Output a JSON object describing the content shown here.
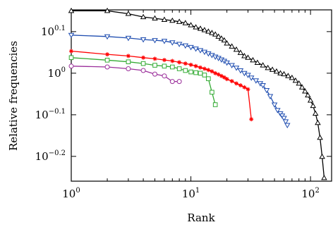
{
  "chart_data": {
    "type": "line",
    "title": "",
    "xlabel": "Rank",
    "ylabel": "Relative frequencies",
    "x_scale": "log",
    "y_scale": "log",
    "xlim": [
      1,
      150
    ],
    "ylim": [
      0.55,
      1.42
    ],
    "x_ticks": [
      {
        "value": 1,
        "base": "10",
        "exp": "0"
      },
      {
        "value": 10,
        "base": "10",
        "exp": "1"
      },
      {
        "value": 100,
        "base": "10",
        "exp": "2"
      }
    ],
    "y_ticks": [
      {
        "value": 1.2589,
        "base": "10",
        "exp": "0.1"
      },
      {
        "value": 1.0,
        "base": "10",
        "exp": "0"
      },
      {
        "value": 0.7943,
        "base": "10",
        "exp": "−0.1"
      },
      {
        "value": 0.631,
        "base": "10",
        "exp": "−0.2"
      }
    ],
    "grid": false,
    "series": [
      {
        "color": "#000000",
        "marker": "triangle-up",
        "x": [
          1,
          2,
          3,
          4,
          5,
          6,
          7,
          8,
          9,
          10,
          11,
          12,
          13,
          14,
          15,
          16,
          17,
          18,
          19,
          20,
          22,
          24,
          26,
          28,
          30,
          33,
          36,
          40,
          44,
          48,
          52,
          56,
          60,
          65,
          70,
          75,
          80,
          85,
          90,
          95,
          100,
          105,
          110,
          115,
          120,
          125,
          130
        ],
        "y": [
          1.413,
          1.413,
          1.39,
          1.365,
          1.355,
          1.345,
          1.338,
          1.33,
          1.32,
          1.305,
          1.29,
          1.28,
          1.27,
          1.26,
          1.25,
          1.24,
          1.225,
          1.212,
          1.2,
          1.18,
          1.16,
          1.14,
          1.12,
          1.1,
          1.09,
          1.075,
          1.06,
          1.045,
          1.03,
          1.02,
          1.01,
          1.0,
          0.995,
          0.985,
          0.975,
          0.96,
          0.945,
          0.925,
          0.905,
          0.885,
          0.86,
          0.835,
          0.8,
          0.76,
          0.7,
          0.63,
          0.56
        ]
      },
      {
        "color": "#1f4db0",
        "marker": "triangle-down",
        "x": [
          1,
          2,
          3,
          4,
          5,
          6,
          7,
          8,
          9,
          10,
          11,
          12,
          13,
          14,
          15,
          16,
          17,
          18,
          19,
          20,
          22,
          24,
          26,
          28,
          30,
          32,
          35,
          38,
          40,
          43,
          46,
          50,
          53,
          56,
          58,
          60,
          62,
          64
        ],
        "y": [
          1.235,
          1.225,
          1.215,
          1.205,
          1.2,
          1.195,
          1.185,
          1.175,
          1.165,
          1.155,
          1.145,
          1.135,
          1.125,
          1.115,
          1.105,
          1.095,
          1.087,
          1.078,
          1.07,
          1.06,
          1.045,
          1.03,
          1.015,
          1.0,
          0.99,
          0.975,
          0.96,
          0.945,
          0.935,
          0.91,
          0.88,
          0.84,
          0.815,
          0.8,
          0.79,
          0.78,
          0.765,
          0.75
        ]
      },
      {
        "color": "#ff0000",
        "marker": "star",
        "x": [
          1,
          2,
          3,
          4,
          5,
          6,
          7,
          8,
          9,
          10,
          11,
          12,
          13,
          14,
          15,
          16,
          17,
          18,
          19,
          20,
          22,
          24,
          26,
          28,
          30,
          32
        ],
        "y": [
          1.13,
          1.11,
          1.1,
          1.09,
          1.083,
          1.076,
          1.07,
          1.062,
          1.055,
          1.048,
          1.04,
          1.032,
          1.025,
          1.018,
          1.01,
          1.0,
          0.993,
          0.985,
          0.977,
          0.968,
          0.957,
          0.945,
          0.935,
          0.925,
          0.915,
          0.775
        ]
      },
      {
        "color": "#33aa33",
        "marker": "square",
        "x": [
          1,
          2,
          3,
          4,
          5,
          6,
          7,
          8,
          9,
          10,
          11,
          12,
          13,
          14,
          15,
          16
        ],
        "y": [
          1.09,
          1.075,
          1.065,
          1.055,
          1.045,
          1.04,
          1.035,
          1.025,
          1.015,
          1.007,
          1.003,
          1.0,
          0.99,
          0.97,
          0.9,
          0.84
        ]
      },
      {
        "color": "#9b2f9b",
        "marker": "circle",
        "x": [
          1,
          2,
          3,
          4,
          5,
          6,
          7,
          8
        ],
        "y": [
          1.04,
          1.035,
          1.025,
          1.015,
          0.995,
          0.985,
          0.955,
          0.955
        ]
      }
    ]
  }
}
